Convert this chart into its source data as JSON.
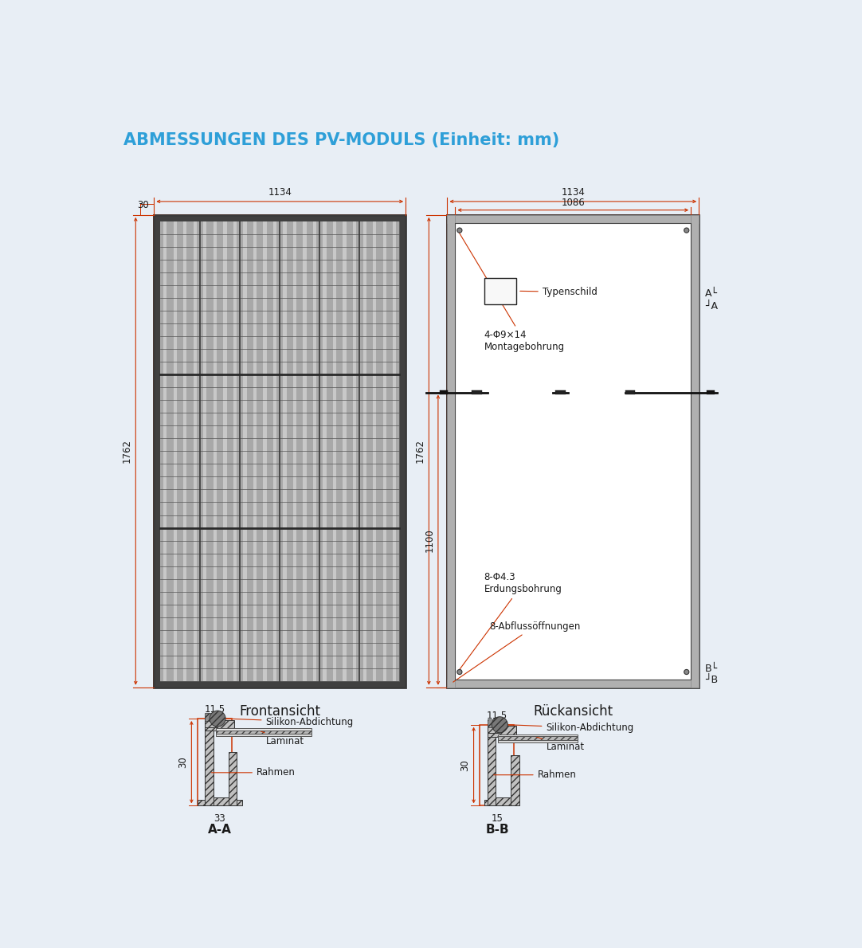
{
  "title": "ABMESSUNGEN DES PV-MODULS (Einheit: mm)",
  "title_color": "#2E9FD8",
  "bg_color": "#e8eef5",
  "drawing_bg": "#ffffff",
  "dim_color": "#cc3300",
  "text_color": "#1a1a1a",
  "front_label": "Frontansicht",
  "back_label": "Rückansicht",
  "aa_label": "A-A",
  "bb_label": "B-B",
  "dim_1134": "1134",
  "dim_1086": "1086",
  "dim_1762": "1762",
  "dim_1100": "1100",
  "dim_30_top": "30",
  "dim_30_frame": "30",
  "dim_33": "33",
  "dim_15": "15",
  "dim_11_5": "11.5",
  "annotation_typenschild": "Typenschild",
  "annotation_montage": "4-Φ9×14\nMontagebohrung",
  "annotation_erdung": "8-Φ4.3\nErdungsbohrung",
  "annotation_abfluss": "8-Abflussöffnungen",
  "annotation_silikon": "Silikon-Abdichtung",
  "annotation_laminat": "Laminat",
  "annotation_rahmen": "Rahmen"
}
